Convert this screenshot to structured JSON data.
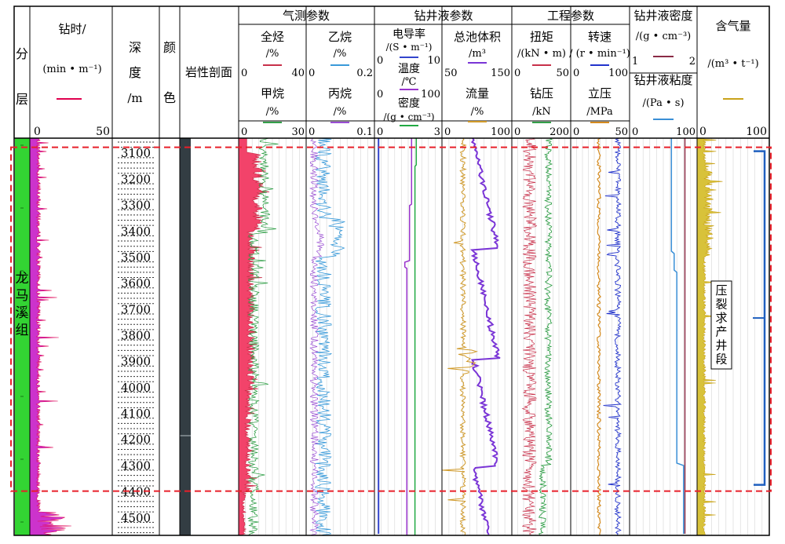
{
  "chart_data": {
    "type": "line",
    "title": "",
    "y_axis": {
      "label": "深度 /m",
      "range": [
        3045,
        4570
      ],
      "ticks": [
        3100,
        3200,
        3300,
        3400,
        3500,
        3600,
        3700,
        3800,
        3900,
        4000,
        4100,
        4200,
        4300,
        4400,
        4500
      ]
    },
    "columns": {
      "layer": {
        "header": [
          "分",
          "层"
        ],
        "formation": "龙马溪组",
        "formation_chars": [
          "龙",
          "马",
          "溪",
          "组"
        ]
      },
      "drill_time": {
        "title": "钻时/",
        "unit": "(min • m⁻¹)",
        "min": "0",
        "max": "50",
        "color": "#e0004e",
        "fill": "#cc33cc"
      },
      "depth": {
        "title": [
          "深",
          "度",
          "/m"
        ]
      },
      "color": {
        "title": [
          "颜",
          "色"
        ]
      },
      "lithology": {
        "title": "岩性剖面"
      },
      "gas": {
        "group_title": "气测参数",
        "total_hc": {
          "name": "全烃",
          "unit": "/%",
          "min": "0",
          "max": "40",
          "color": "#c8304a"
        },
        "ethane": {
          "name": "乙烷",
          "unit": "/%",
          "min": "0",
          "max": "0.2",
          "color": "#3a9ad9"
        },
        "methane": {
          "name": "甲烷",
          "unit": "/%",
          "min": "0",
          "max": "30",
          "color": "#33a04a"
        },
        "propane": {
          "name": "丙烷",
          "unit": "/%",
          "min": "0",
          "max": "0.1",
          "color": "#9a4dd4"
        }
      },
      "mud": {
        "group_title": "钻井液参数",
        "conductivity": {
          "name": "电导率",
          "unit": "/(S • m⁻¹)",
          "min": "0",
          "max": "10",
          "color": "#3344cc"
        },
        "temperature": {
          "name": "温度",
          "unit": "/℃",
          "min": "0",
          "max": "100",
          "color": "#9933cc"
        },
        "density": {
          "name": "密度",
          "unit": "/(g • cm⁻³)",
          "min": "0",
          "max": "3",
          "color": "#22aa44"
        },
        "pit_volume": {
          "name": "总池体积",
          "unit": "/m³",
          "min": "50",
          "max": "150",
          "color": "#7a35d6"
        },
        "flow": {
          "name": "流量",
          "unit": "/%",
          "min": "0",
          "max": "100",
          "color": "#d09a2a"
        }
      },
      "engineering": {
        "group_title": "工程参数",
        "torque": {
          "name": "扭矩",
          "unit": "/(kN • m)",
          "min": "0",
          "max": "50",
          "color": "#c8304a"
        },
        "rpm": {
          "name": "转速",
          "unit": "/ (r • min⁻¹)",
          "min": "0",
          "max": "100",
          "color": "#2233cc"
        },
        "wob": {
          "name": "钻压",
          "unit": "/kN",
          "min": "0",
          "max": "200",
          "color": "#33a04a"
        },
        "standpipe": {
          "name": "立压",
          "unit": "/MPa",
          "min": "0",
          "max": "50",
          "color": "#d48a1e"
        }
      },
      "mud_props": {
        "density": {
          "name": "钻井液密度",
          "unit": "/(g • cm⁻³)",
          "min": "1",
          "max": "2",
          "color": "#8a2a45"
        },
        "viscosity": {
          "name": "钻井液粘度",
          "unit": "/(Pa • s)",
          "min": "0",
          "max": "100",
          "color": "#3a8fd6"
        }
      },
      "gas_content": {
        "name": "含气量",
        "unit": "/(m³ • t⁻¹)",
        "min": "0",
        "max": "100",
        "color": "#c9a21a"
      }
    },
    "annotation": {
      "label": "压裂求产井段",
      "label_chars": [
        "压",
        "裂",
        "求",
        "产",
        "井",
        "段"
      ],
      "depth_range": [
        3080,
        4400
      ]
    }
  }
}
